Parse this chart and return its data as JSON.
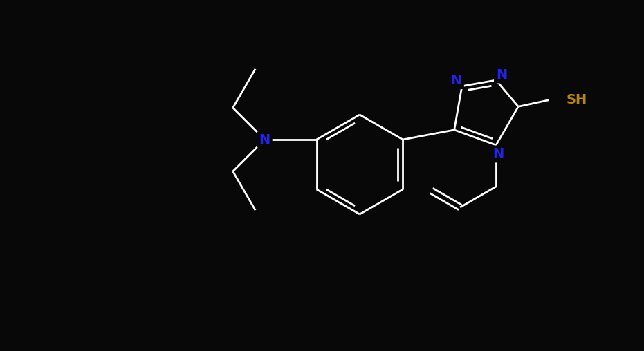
{
  "bg_color": "#080808",
  "bond_color": "#ffffff",
  "N_color": "#2222ee",
  "S_color": "#b8860b",
  "figsize": [
    9.31,
    5.08
  ],
  "dpi": 100,
  "bond_width": 2.0,
  "dbo": 0.07,
  "font_size_N": 14,
  "font_size_SH": 14,
  "xlim": [
    0,
    9.31
  ],
  "ylim": [
    0,
    5.08
  ]
}
